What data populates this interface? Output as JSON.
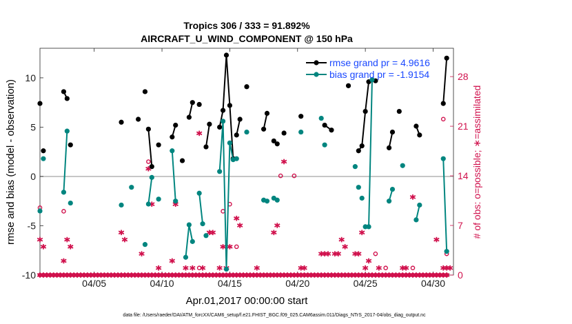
{
  "chart_data": {
    "type": "line",
    "title": "Tropics 306 / 333 = 91.892%",
    "subtitle": "AIRCRAFT_U_WIND_COMPONENT @ 150 hPa",
    "xlabel": "Apr.01,2017 00:00:00 start",
    "ylabel": "rmse and bias (model - observation)",
    "ylabel_right": "# of obs: o=possible; ∗=assimilated",
    "footer": "data file: /Users/raeder/DAI/ATM_forcXX/CAM6_setup/f.e21.FHIST_BGC.f09_025.CAM6assim.011/Diags_NTrS_2017-04/obs_diag_output.nc",
    "xlim": [
      0,
      30.5
    ],
    "ylim": [
      -10,
      13
    ],
    "ylim_right": [
      0,
      32
    ],
    "x_ticks": [
      4,
      9,
      14,
      19,
      24,
      29
    ],
    "x_tick_labels": [
      "04/05",
      "04/10",
      "04/15",
      "04/20",
      "04/25",
      "04/30"
    ],
    "y_ticks": [
      -10,
      -5,
      0,
      5,
      10
    ],
    "y_right_ticks": [
      0,
      7,
      14,
      21,
      28
    ],
    "grid": false,
    "zero_line": true,
    "legend_position": "top-right",
    "colors": {
      "rmse": "#000000",
      "bias": "#00857f",
      "obs": "#d0104c",
      "zero_line": "#b3b3b3",
      "legend_text": "#1a48ff"
    },
    "series": [
      {
        "name": "rmse grand pr = 4.9616",
        "axis": "left",
        "segments": [
          [
            [
              0.0,
              7.4
            ]
          ],
          [
            [
              0.25,
              2.6
            ]
          ],
          [
            [
              1.75,
              8.6
            ],
            [
              2.0,
              7.9
            ]
          ],
          [
            [
              2.25,
              3.2
            ]
          ],
          [
            [
              6.0,
              5.5
            ]
          ],
          [
            [
              7.25,
              5.8
            ]
          ],
          [
            [
              7.75,
              8.6
            ]
          ],
          [
            [
              8.0,
              4.8
            ],
            [
              8.25,
              1.0
            ]
          ],
          [
            [
              8.75,
              3.2
            ]
          ],
          [
            [
              9.75,
              4.0
            ],
            [
              10.0,
              5.2
            ]
          ],
          [
            [
              10.5,
              1.6
            ]
          ],
          [
            [
              11.0,
              6.0
            ],
            [
              11.25,
              7.5
            ]
          ],
          [
            [
              11.75,
              7.3
            ]
          ],
          [
            [
              12.25,
              3.0
            ],
            [
              12.5,
              5.3
            ]
          ],
          [
            [
              13.25,
              5.0
            ],
            [
              13.5,
              6.7
            ],
            [
              13.75,
              12.3
            ],
            [
              14.0,
              7.2
            ],
            [
              14.25,
              1.8
            ]
          ],
          [
            [
              14.5,
              4.2
            ],
            [
              14.75,
              5.8
            ]
          ],
          [
            [
              15.25,
              9.1
            ]
          ],
          [
            [
              16.5,
              4.8
            ],
            [
              16.75,
              6.4
            ]
          ],
          [
            [
              17.25,
              3.6
            ]
          ],
          [
            [
              17.5,
              3.3
            ]
          ],
          [
            [
              18.0,
              4.4
            ]
          ],
          [
            [
              19.25,
              6.1
            ]
          ],
          [
            [
              21.0,
              5.2
            ],
            [
              21.5,
              4.7
            ]
          ],
          [
            [
              22.75,
              9.2
            ]
          ],
          [
            [
              23.5,
              2.6
            ],
            [
              23.75,
              3.1
            ],
            [
              24.0,
              6.6
            ],
            [
              24.25,
              9.6
            ]
          ],
          [
            [
              24.75,
              9.7
            ]
          ],
          [
            [
              25.75,
              2.9
            ],
            [
              26.0,
              4.5
            ]
          ],
          [
            [
              26.5,
              6.6
            ]
          ],
          [
            [
              27.75,
              5.1
            ],
            [
              28.0,
              4.2
            ]
          ],
          [
            [
              29.75,
              7.4
            ],
            [
              30.0,
              12.0
            ]
          ]
        ]
      },
      {
        "name": "bias grand pr = -1.9154",
        "axis": "left",
        "segments": [
          [
            [
              0.0,
              -3.5
            ]
          ],
          [
            [
              0.25,
              1.8
            ]
          ],
          [
            [
              1.75,
              -1.6
            ],
            [
              2.0,
              4.6
            ]
          ],
          [
            [
              2.25,
              -2.7
            ]
          ],
          [
            [
              6.0,
              -2.9
            ]
          ],
          [
            [
              6.75,
              -1.1
            ]
          ],
          [
            [
              7.75,
              -6.9
            ]
          ],
          [
            [
              8.0,
              -2.8
            ],
            [
              8.25,
              -0.1
            ]
          ],
          [
            [
              8.75,
              -2.3
            ]
          ],
          [
            [
              9.75,
              2.6
            ],
            [
              10.0,
              -2.5
            ]
          ],
          [
            [
              10.75,
              -8.2
            ],
            [
              11.0,
              -4.9
            ],
            [
              11.25,
              -6.6
            ]
          ],
          [
            [
              11.75,
              -1.7
            ],
            [
              12.0,
              -4.8
            ]
          ],
          [
            [
              12.25,
              -6.0
            ]
          ],
          [
            [
              13.25,
              0.5
            ],
            [
              13.5,
              5.6
            ],
            [
              13.75,
              -9.4
            ],
            [
              14.0,
              3.4
            ],
            [
              14.25,
              1.7
            ]
          ],
          [
            [
              14.5,
              1.8
            ]
          ],
          [
            [
              15.25,
              4.5
            ]
          ],
          [
            [
              16.5,
              -2.4
            ],
            [
              16.75,
              -2.5
            ]
          ],
          [
            [
              17.25,
              -2.2
            ]
          ],
          [
            [
              17.5,
              -2.4
            ]
          ],
          [
            [
              19.25,
              4.5
            ]
          ],
          [
            [
              20.75,
              5.9
            ]
          ],
          [
            [
              21.0,
              3.2
            ]
          ],
          [
            [
              23.25,
              1.0
            ]
          ],
          [
            [
              23.5,
              -1.1
            ]
          ],
          [
            [
              23.75,
              -2.2
            ]
          ],
          [
            [
              24.0,
              -5.1
            ],
            [
              24.25,
              -5.1
            ],
            [
              24.5,
              9.8
            ]
          ],
          [
            [
              25.75,
              -2.5
            ],
            [
              26.0,
              -1.3
            ]
          ],
          [
            [
              26.75,
              1.1
            ]
          ],
          [
            [
              27.75,
              -4.4
            ],
            [
              28.0,
              -2.9
            ]
          ],
          [
            [
              29.75,
              1.8
            ],
            [
              30.0,
              -7.6
            ]
          ]
        ]
      },
      {
        "name": "possible",
        "axis": "right",
        "marker": "circle",
        "points": [
          [
            0.0,
            9.5
          ],
          [
            1.75,
            9
          ],
          [
            8.0,
            16
          ],
          [
            11.75,
            1
          ],
          [
            13.5,
            9
          ],
          [
            14.0,
            10
          ],
          [
            14.5,
            4
          ],
          [
            17.75,
            14
          ],
          [
            18.75,
            14
          ],
          [
            24.75,
            3
          ],
          [
            25.5,
            1
          ],
          [
            27.5,
            1
          ],
          [
            29.75,
            22
          ],
          [
            30.0,
            3
          ]
        ]
      },
      {
        "name": "assimilated",
        "axis": "right",
        "marker": "asterisk",
        "points": [
          [
            0.0,
            5
          ],
          [
            0.25,
            4
          ],
          [
            1.75,
            2
          ],
          [
            2.0,
            5
          ],
          [
            2.25,
            4
          ],
          [
            6.0,
            6
          ],
          [
            6.25,
            5
          ],
          [
            7.5,
            3
          ],
          [
            8.0,
            15
          ],
          [
            8.25,
            10
          ],
          [
            8.75,
            1
          ],
          [
            9.75,
            2
          ],
          [
            10.0,
            10
          ],
          [
            10.75,
            1
          ],
          [
            11.25,
            1
          ],
          [
            11.75,
            20
          ],
          [
            12.0,
            1
          ],
          [
            12.5,
            6
          ],
          [
            12.75,
            6
          ],
          [
            13.25,
            1
          ],
          [
            13.5,
            4
          ],
          [
            13.75,
            1
          ],
          [
            14.0,
            4
          ],
          [
            14.5,
            8
          ],
          [
            14.75,
            7
          ],
          [
            16.0,
            1
          ],
          [
            17.25,
            6
          ],
          [
            17.5,
            7
          ],
          [
            18.0,
            16
          ],
          [
            19.25,
            1
          ],
          [
            19.5,
            1
          ],
          [
            20.75,
            3
          ],
          [
            21.0,
            3
          ],
          [
            21.25,
            3
          ],
          [
            21.75,
            3
          ],
          [
            22.0,
            3
          ],
          [
            22.25,
            5
          ],
          [
            22.5,
            4
          ],
          [
            23.25,
            3
          ],
          [
            23.5,
            3
          ],
          [
            23.75,
            6
          ],
          [
            24.0,
            1
          ],
          [
            24.25,
            2
          ],
          [
            25.0,
            1
          ],
          [
            26.75,
            1
          ],
          [
            27.0,
            1
          ],
          [
            27.5,
            11
          ],
          [
            29.25,
            5
          ],
          [
            29.75,
            1
          ],
          [
            30.0,
            1
          ],
          [
            30.25,
            1
          ]
        ]
      }
    ],
    "zeros_days": [
      0,
      30
    ]
  }
}
